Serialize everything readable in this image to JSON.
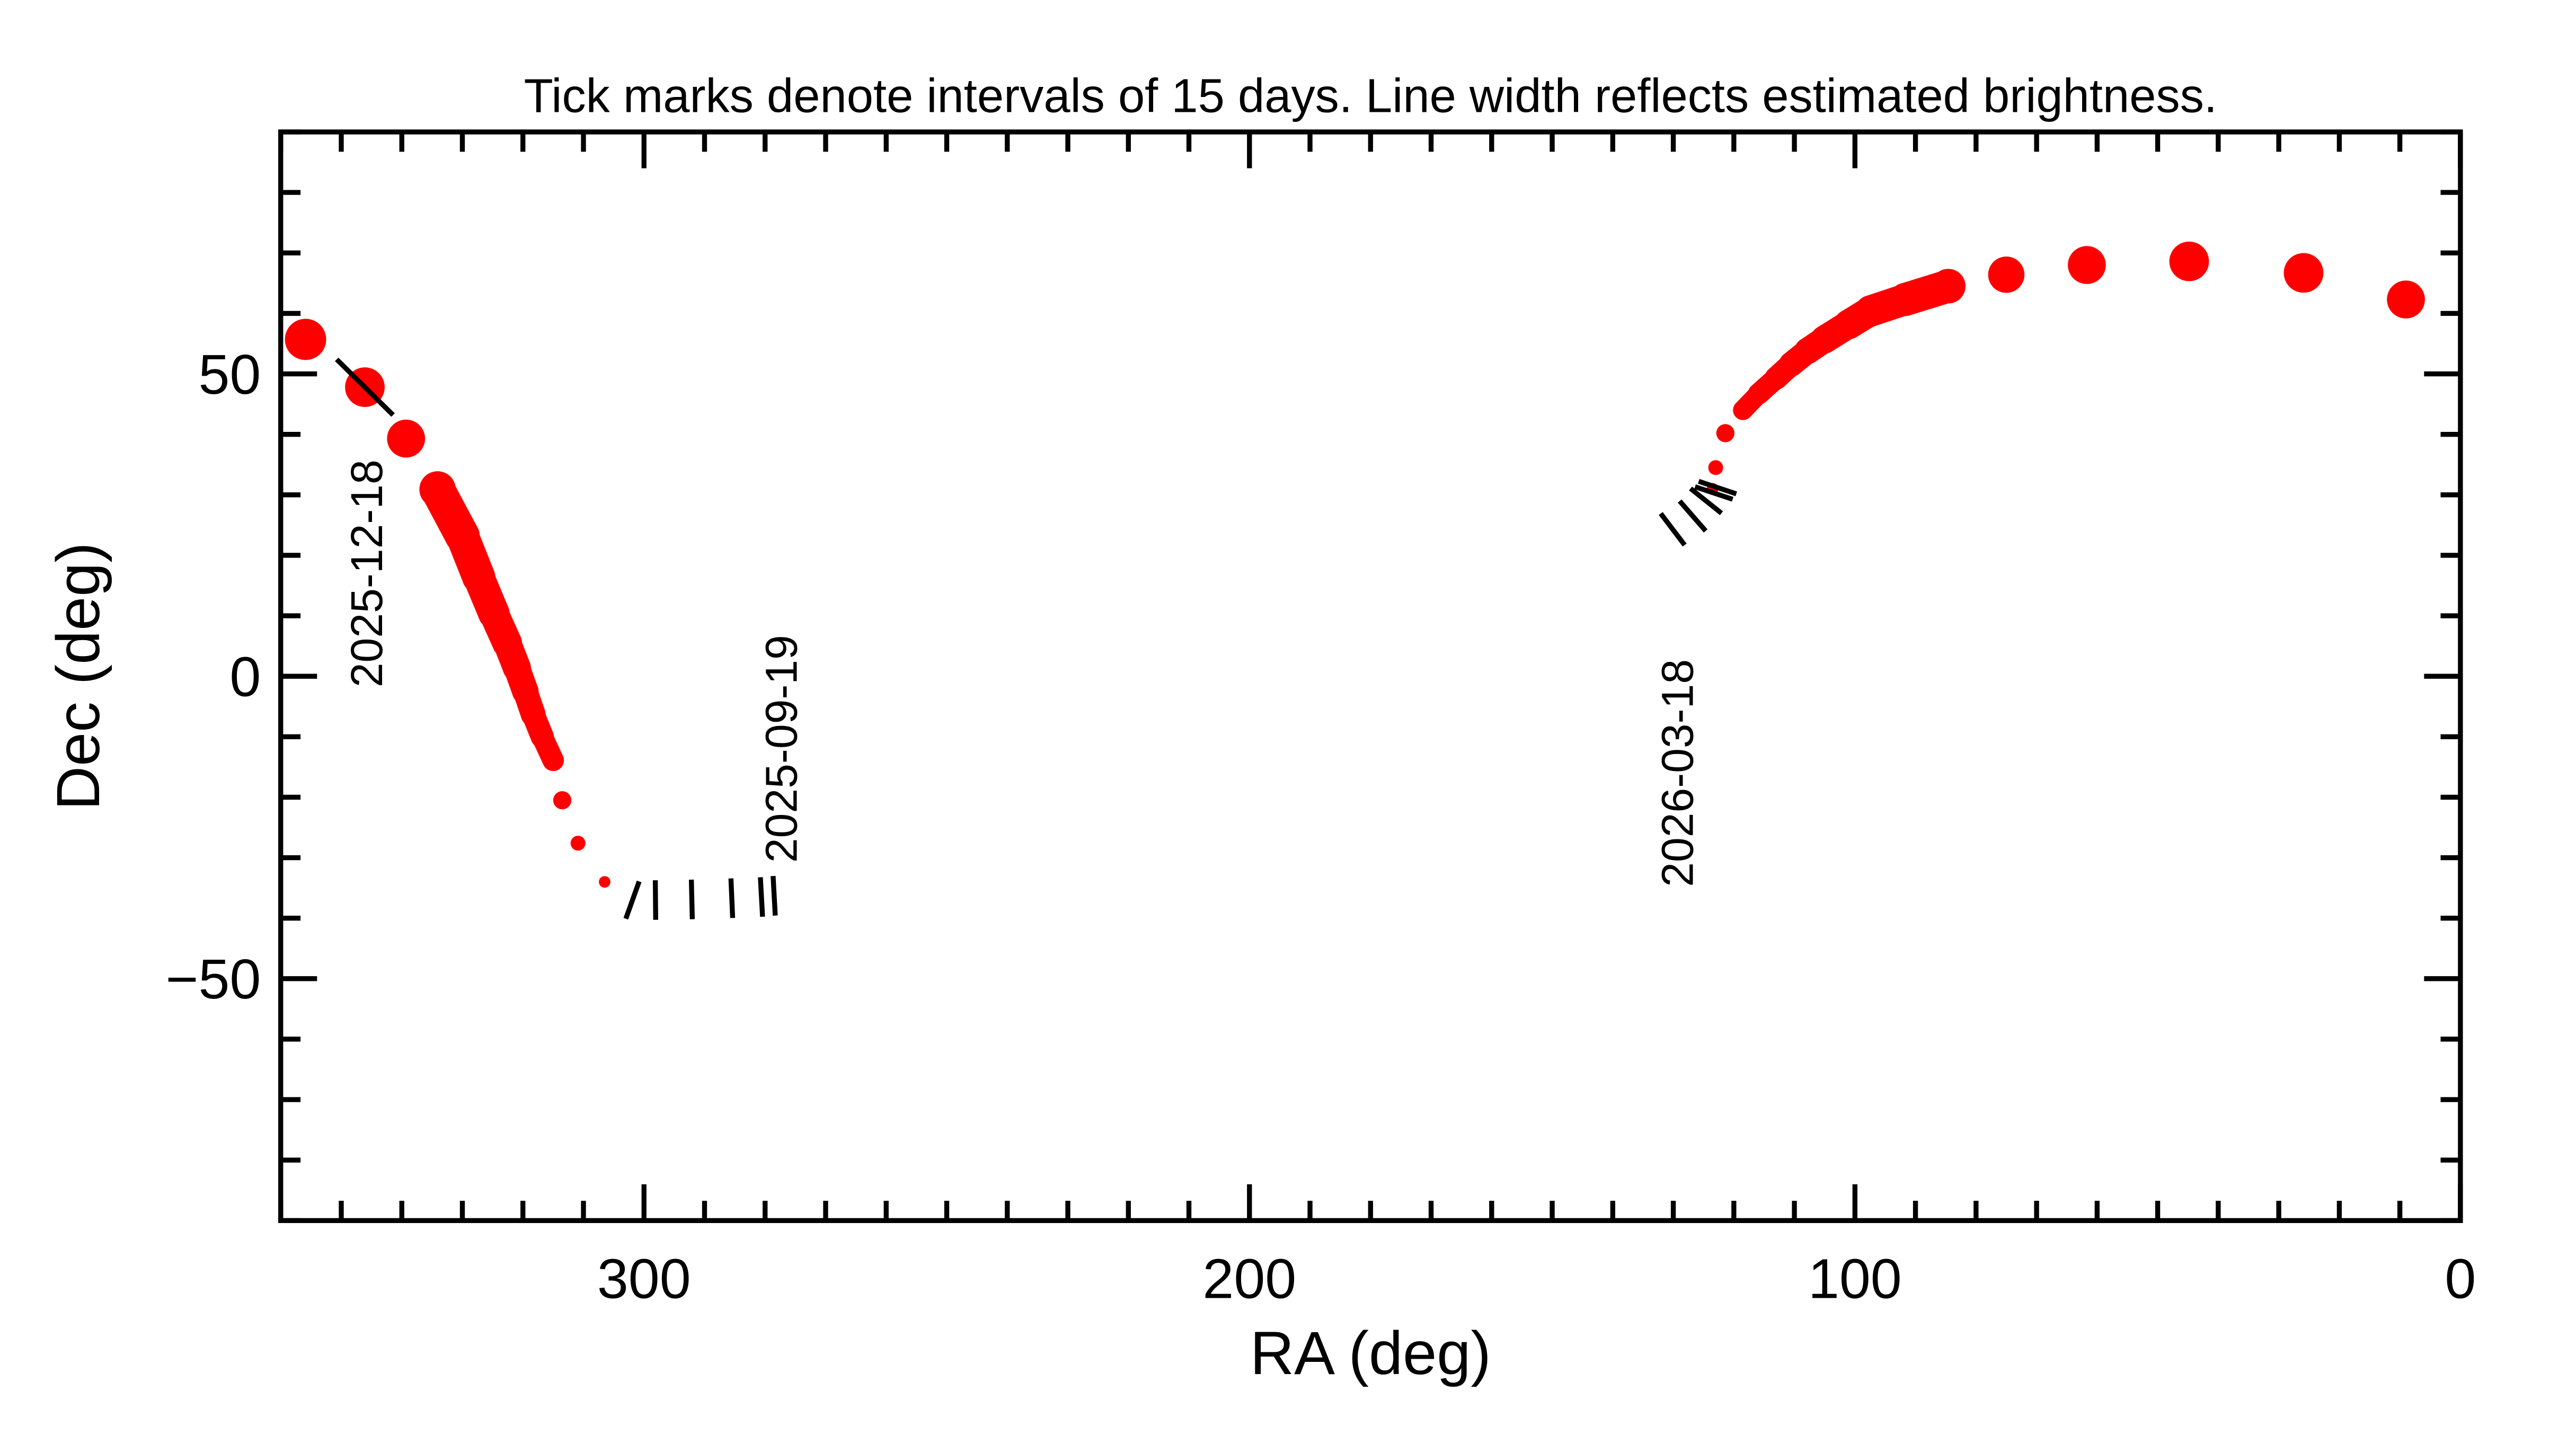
{
  "chart_data": {
    "type": "line",
    "title": "Tick marks denote intervals of 15 days.  Line width reflects estimated brightness.",
    "xlabel": "RA (deg)",
    "ylabel": "Dec (deg)",
    "xlim": [
      360,
      0
    ],
    "ylim": [
      -90,
      90
    ],
    "x_reversed": true,
    "grid": false,
    "x_ticks": [
      {
        "value": 300,
        "label": "300"
      },
      {
        "value": 200,
        "label": "200"
      },
      {
        "value": 100,
        "label": "100"
      },
      {
        "value": 0,
        "label": "0"
      }
    ],
    "y_ticks": [
      {
        "value": 50,
        "label": "50"
      },
      {
        "value": 0,
        "label": "0"
      },
      {
        "value": -50,
        "label": "−50"
      }
    ],
    "x_minor_step": 10,
    "y_minor_step": 10,
    "series_color": "#ff0000",
    "tick_mark_color": "#000000",
    "series": [
      {
        "points": [
          {
            "ra": 278.2,
            "dec": -36.3,
            "relative_width": 4
          },
          {
            "ra": 285.5,
            "dec": -36.7,
            "relative_width": 4
          },
          {
            "ra": 292.1,
            "dec": -36.9,
            "relative_width": 4
          },
          {
            "ra": 298.1,
            "dec": -37.0,
            "relative_width": 4
          },
          {
            "ra": 302.7,
            "dec": -37.0,
            "relative_width": 5
          },
          {
            "ra": 306.5,
            "dec": -34.0,
            "relative_width": 7
          },
          {
            "ra": 310.9,
            "dec": -27.6,
            "relative_width": 9
          },
          {
            "ra": 313.5,
            "dec": -20.5,
            "relative_width": 11
          },
          {
            "ra": 315.0,
            "dec": -13.9,
            "relative_width": 13
          },
          {
            "ra": 316.8,
            "dec": -10.0,
            "relative_width": 14
          },
          {
            "ra": 318.3,
            "dec": -6.3,
            "relative_width": 15
          },
          {
            "ra": 319.6,
            "dec": -2.5,
            "relative_width": 16
          },
          {
            "ra": 321.0,
            "dec": 1.4,
            "relative_width": 17
          },
          {
            "ra": 322.6,
            "dec": 5.5,
            "relative_width": 18
          },
          {
            "ra": 324.8,
            "dec": 10.4,
            "relative_width": 19
          },
          {
            "ra": 327.3,
            "dec": 16.4,
            "relative_width": 20
          },
          {
            "ra": 330.0,
            "dec": 23.2,
            "relative_width": 21
          },
          {
            "ra": 334.1,
            "dec": 30.9,
            "relative_width": 22
          },
          {
            "ra": 339.3,
            "dec": 39.3,
            "relative_width": 23
          },
          {
            "ra": 346.1,
            "dec": 47.8,
            "relative_width": 24
          },
          {
            "ra": 355.9,
            "dec": 55.7,
            "relative_width": 25
          }
        ],
        "tick_marks": [
          {
            "ra": 301.9,
            "dec": -37.0
          },
          {
            "ra": 298.1,
            "dec": -37.0
          },
          {
            "ra": 292.1,
            "dec": -36.9
          },
          {
            "ra": 285.5,
            "dec": -36.7
          },
          {
            "ra": 280.6,
            "dec": -36.5
          },
          {
            "ra": 278.5,
            "dec": -36.3
          },
          {
            "ra": 346.1,
            "dec": 47.8,
            "long": true
          }
        ],
        "date_labels": [
          {
            "text": "2025-09-19",
            "ra": 277.5,
            "dec": -12
          },
          {
            "text": "2025-12-18",
            "ra": 346.0,
            "dec": 17
          }
        ]
      },
      {
        "points": [
          {
            "ra": 130.4,
            "dec": 23.8,
            "relative_width": 4
          },
          {
            "ra": 127.5,
            "dec": 26.0,
            "relative_width": 4
          },
          {
            "ra": 125.0,
            "dec": 28.5,
            "relative_width": 5
          },
          {
            "ra": 123.5,
            "dec": 31.0,
            "relative_width": 7
          },
          {
            "ra": 123.0,
            "dec": 34.5,
            "relative_width": 9
          },
          {
            "ra": 121.4,
            "dec": 40.2,
            "relative_width": 11
          },
          {
            "ra": 118.5,
            "dec": 44.0,
            "relative_width": 12
          },
          {
            "ra": 115.9,
            "dec": 46.7,
            "relative_width": 13
          },
          {
            "ra": 113.0,
            "dec": 49.3,
            "relative_width": 14
          },
          {
            "ra": 110.5,
            "dec": 51.6,
            "relative_width": 15
          },
          {
            "ra": 107.8,
            "dec": 53.8,
            "relative_width": 16
          },
          {
            "ra": 105.0,
            "dec": 55.7,
            "relative_width": 17
          },
          {
            "ra": 101.0,
            "dec": 58.2,
            "relative_width": 18
          },
          {
            "ra": 97.4,
            "dec": 60.4,
            "relative_width": 19
          },
          {
            "ra": 91.7,
            "dec": 62.3,
            "relative_width": 20
          },
          {
            "ra": 84.6,
            "dec": 64.5,
            "relative_width": 21
          },
          {
            "ra": 75.0,
            "dec": 66.4,
            "relative_width": 22
          },
          {
            "ra": 61.7,
            "dec": 68.0,
            "relative_width": 23
          },
          {
            "ra": 44.8,
            "dec": 68.6,
            "relative_width": 24
          },
          {
            "ra": 25.9,
            "dec": 66.7,
            "relative_width": 24
          },
          {
            "ra": 9.0,
            "dec": 62.3,
            "relative_width": 23
          }
        ],
        "tick_marks": [
          {
            "ra": 130.1,
            "dec": 24.3
          },
          {
            "ra": 126.8,
            "dec": 26.5
          },
          {
            "ra": 124.6,
            "dec": 29.0
          },
          {
            "ra": 123.3,
            "dec": 30.3
          },
          {
            "ra": 122.7,
            "dec": 31.2
          }
        ],
        "date_labels": [
          {
            "text": "2026-03-18",
            "ra": 129.5,
            "dec": -16
          }
        ]
      }
    ]
  }
}
